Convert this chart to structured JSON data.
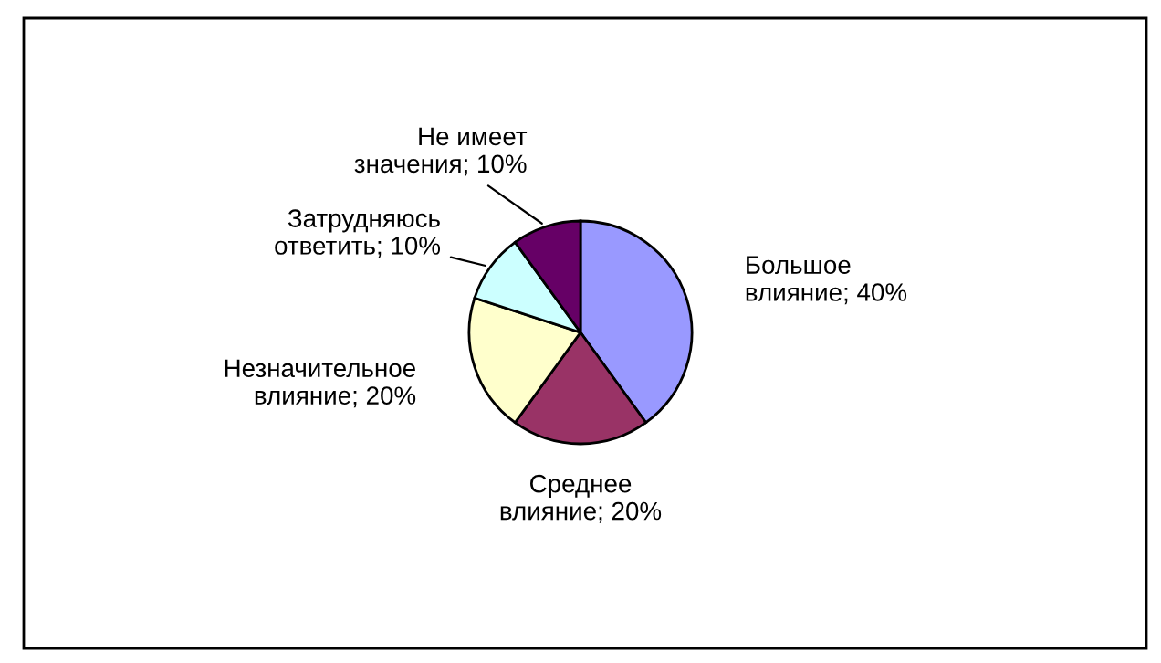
{
  "chart_data": {
    "type": "pie",
    "categories": [
      "Большое влияние",
      "Среднее влияние",
      "Незначительное влияние",
      "Затрудняюсь ответить",
      "Не имеет значения"
    ],
    "values": [
      40,
      20,
      20,
      10,
      10
    ],
    "value_labels": [
      "40%",
      "20%",
      "20%",
      "10%",
      "10%"
    ],
    "colors": [
      "#9999ff",
      "#993366",
      "#ffffcc",
      "#ccffff",
      "#660066"
    ],
    "legend": false
  }
}
